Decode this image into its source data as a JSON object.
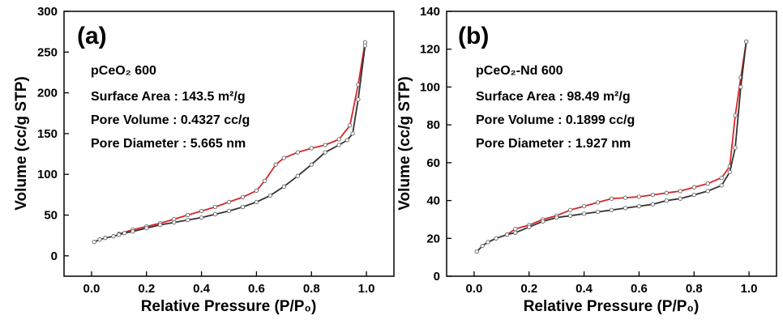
{
  "chart_data": [
    {
      "type": "line",
      "panel_label": "(a)",
      "sample": "pCeO₂ 600",
      "annotations": [
        "Surface Area : 143.5 m²/g",
        "Pore Volume : 0.4327 cc/g",
        "Pore Diameter : 5.665 nm"
      ],
      "xlabel": "Relative Pressure (P/P₀)",
      "ylabel": "Volume (cc/g STP)",
      "xlim": [
        -0.1,
        1.1
      ],
      "ylim": [
        -25,
        300
      ],
      "xticks": [
        "0.0",
        "0.2",
        "0.4",
        "0.6",
        "0.8",
        "1.0"
      ],
      "yticks": [
        "0",
        "50",
        "100",
        "150",
        "200",
        "250",
        "300"
      ],
      "grid": false,
      "legend": "none",
      "series": [
        {
          "color": "#d62728",
          "x": [
            0.995,
            0.97,
            0.94,
            0.9,
            0.85,
            0.8,
            0.75,
            0.7,
            0.67,
            0.63,
            0.6,
            0.55,
            0.5,
            0.45,
            0.4,
            0.35,
            0.3,
            0.25,
            0.2,
            0.15,
            0.1
          ],
          "y": [
            262,
            210,
            160,
            143,
            136,
            132,
            127,
            120,
            112,
            92,
            80,
            72,
            66,
            60,
            55,
            50,
            45,
            40,
            36,
            32,
            27
          ]
        },
        {
          "color": "#333333",
          "x": [
            0.01,
            0.03,
            0.05,
            0.08,
            0.1,
            0.12,
            0.15,
            0.2,
            0.25,
            0.3,
            0.35,
            0.4,
            0.45,
            0.5,
            0.55,
            0.6,
            0.65,
            0.7,
            0.75,
            0.8,
            0.85,
            0.9,
            0.93,
            0.95,
            0.97,
            0.995
          ],
          "y": [
            17,
            20,
            22,
            24,
            26,
            28,
            30,
            34,
            38,
            41,
            44,
            47,
            51,
            55,
            60,
            66,
            74,
            85,
            98,
            112,
            127,
            136,
            142,
            150,
            192,
            258
          ]
        }
      ]
    },
    {
      "type": "line",
      "panel_label": "(b)",
      "sample": "pCeO₂-Nd 600",
      "annotations": [
        "Surface Area : 98.49 m²/g",
        "Pore Volume : 0.1899 cc/g",
        "Pore Diameter : 1.927 nm"
      ],
      "xlabel": "Relative Pressure (P/P₀)",
      "ylabel": "Volume (cc/g STP)",
      "xlim": [
        -0.1,
        1.1
      ],
      "ylim": [
        0,
        140
      ],
      "xticks": [
        "0.0",
        "0.2",
        "0.4",
        "0.6",
        "0.8",
        "1.0"
      ],
      "yticks": [
        "0",
        "20",
        "40",
        "60",
        "80",
        "100",
        "120",
        "140"
      ],
      "grid": false,
      "legend": "none",
      "series": [
        {
          "color": "#d62728",
          "x": [
            0.99,
            0.97,
            0.95,
            0.93,
            0.9,
            0.85,
            0.8,
            0.75,
            0.7,
            0.65,
            0.6,
            0.55,
            0.5,
            0.45,
            0.4,
            0.35,
            0.3,
            0.25,
            0.2,
            0.15,
            0.12
          ],
          "y": [
            124,
            105,
            85,
            58,
            52,
            49,
            47,
            45,
            44,
            43,
            42,
            41.5,
            41,
            39,
            37,
            35,
            32,
            30,
            27,
            25,
            22
          ]
        },
        {
          "color": "#333333",
          "x": [
            0.01,
            0.03,
            0.05,
            0.08,
            0.12,
            0.15,
            0.2,
            0.25,
            0.3,
            0.35,
            0.4,
            0.45,
            0.5,
            0.55,
            0.6,
            0.65,
            0.7,
            0.75,
            0.8,
            0.85,
            0.9,
            0.93,
            0.95,
            0.97,
            0.99
          ],
          "y": [
            13,
            16,
            18,
            20,
            22,
            23,
            26,
            29,
            31,
            32,
            33,
            34,
            35,
            36,
            37,
            38,
            40,
            41,
            43,
            45,
            48,
            55,
            68,
            100,
            124
          ]
        }
      ]
    }
  ]
}
